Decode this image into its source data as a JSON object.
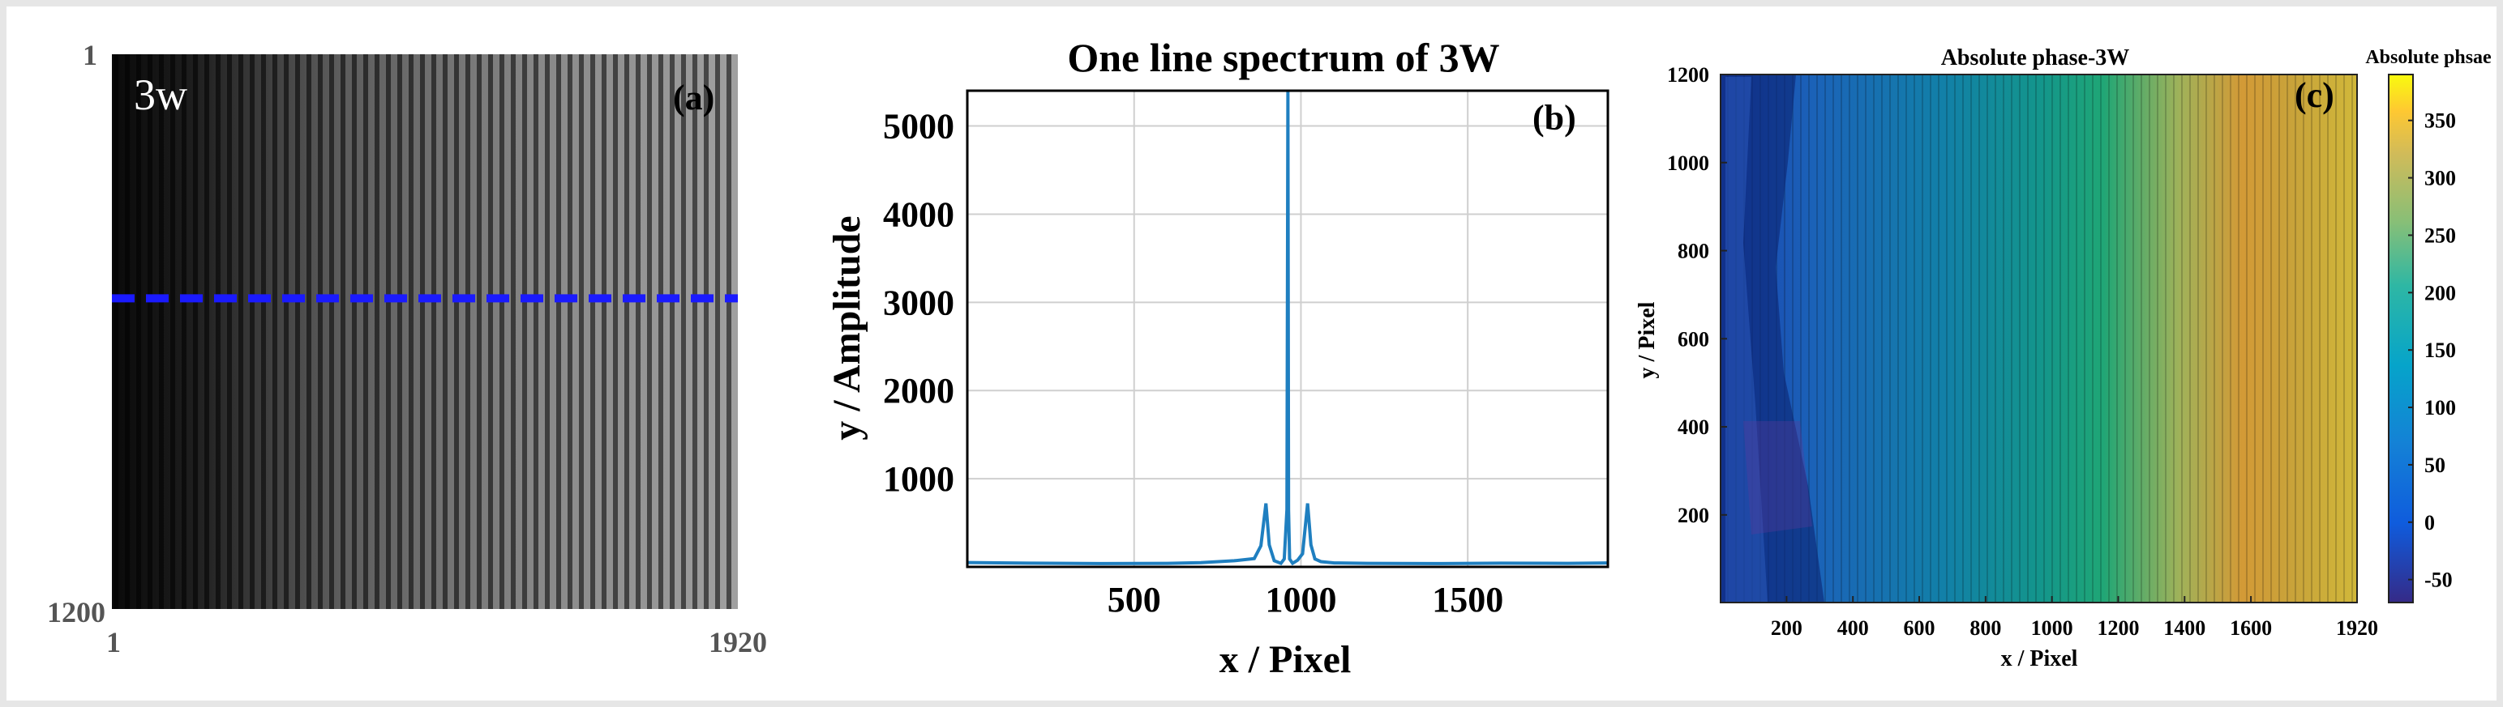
{
  "figure": {
    "panels": [
      {
        "id": "a",
        "tag": "(a)",
        "overlay_text": "3w",
        "x_ticks": [
          "1",
          "1920"
        ],
        "y_ticks": [
          "1",
          "1200"
        ],
        "dashed_line_color": "#1a1aff",
        "dashed_line_row_fraction": 0.44
      },
      {
        "id": "b",
        "tag": "(b)",
        "title": "One line spectrum of 3W",
        "xlabel": "x / Pixel",
        "ylabel": "y / Amplitude",
        "line_color": "#1f7fc0"
      },
      {
        "id": "c",
        "tag": "(c)",
        "title": "Absolute phase-3W",
        "xlabel": "x / Pixel",
        "ylabel": "y / Pixel",
        "colorbar_title": "Absolute phsae"
      }
    ]
  },
  "chart_data": [
    {
      "type": "line",
      "title": "One line spectrum of 3W",
      "xlabel": "x / Pixel",
      "ylabel": "y / Amplitude",
      "xlim": [
        0,
        1920
      ],
      "ylim": [
        0,
        5400
      ],
      "xticks": [
        500,
        1000,
        1500
      ],
      "yticks": [
        1000,
        2000,
        3000,
        4000,
        5000
      ],
      "grid": true,
      "series": [
        {
          "x": [
            0,
            200,
            400,
            600,
            700,
            800,
            860,
            880,
            895,
            905,
            920,
            940,
            950,
            958,
            961,
            963,
            966,
            975,
            990,
            1005,
            1020,
            1030,
            1042,
            1060,
            1100,
            1200,
            1400,
            1600,
            1800,
            1920
          ],
          "y": [
            50,
            42,
            38,
            40,
            48,
            70,
            95,
            240,
            720,
            250,
            70,
            40,
            90,
            650,
            5400,
            650,
            90,
            40,
            75,
            150,
            720,
            250,
            90,
            60,
            45,
            40,
            38,
            42,
            40,
            45
          ]
        }
      ]
    },
    {
      "type": "heatmap",
      "title": "Absolute phase-3W",
      "xlabel": "x / Pixel",
      "ylabel": "y / Pixel",
      "xlim": [
        1,
        1920
      ],
      "ylim": [
        1,
        1200
      ],
      "xticks": [
        200,
        400,
        600,
        800,
        1000,
        1200,
        1400,
        1600,
        1920
      ],
      "yticks": [
        200,
        400,
        600,
        800,
        1000,
        1200
      ],
      "colorbar": {
        "label": "Absolute phsae",
        "range": [
          -70,
          390
        ],
        "ticks": [
          -50,
          0,
          50,
          100,
          150,
          200,
          250,
          300,
          350
        ]
      },
      "phase_left": -40,
      "phase_right": 360
    }
  ]
}
